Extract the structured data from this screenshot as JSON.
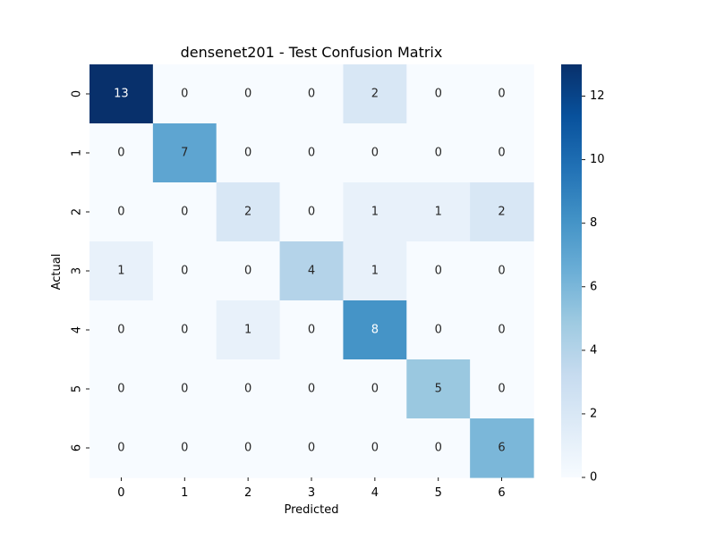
{
  "chart_data": {
    "type": "heatmap",
    "title": "densenet201 - Test Confusion Matrix",
    "xlabel": "Predicted",
    "ylabel": "Actual",
    "x_categories": [
      "0",
      "1",
      "2",
      "3",
      "4",
      "5",
      "6"
    ],
    "y_categories": [
      "0",
      "1",
      "2",
      "3",
      "4",
      "5",
      "6"
    ],
    "matrix": [
      [
        13,
        0,
        0,
        0,
        2,
        0,
        0
      ],
      [
        0,
        7,
        0,
        0,
        0,
        0,
        0
      ],
      [
        0,
        0,
        2,
        0,
        1,
        1,
        2
      ],
      [
        1,
        0,
        0,
        4,
        1,
        0,
        0
      ],
      [
        0,
        0,
        1,
        0,
        8,
        0,
        0
      ],
      [
        0,
        0,
        0,
        0,
        0,
        5,
        0
      ],
      [
        0,
        0,
        0,
        0,
        0,
        0,
        6
      ]
    ],
    "colorbar": {
      "min": 0,
      "max": 13,
      "ticks": [
        0,
        2,
        4,
        6,
        8,
        10,
        12
      ],
      "colormap": "Blues",
      "color_stops": [
        "#f7fbff",
        "#deebf7",
        "#c6dbef",
        "#9ecae1",
        "#6baed6",
        "#4292c6",
        "#2171b5",
        "#08519c",
        "#08306b"
      ]
    },
    "annotation_text_colors": {
      "dark_cells": "#ffffff",
      "light_cells": "#262626"
    }
  }
}
